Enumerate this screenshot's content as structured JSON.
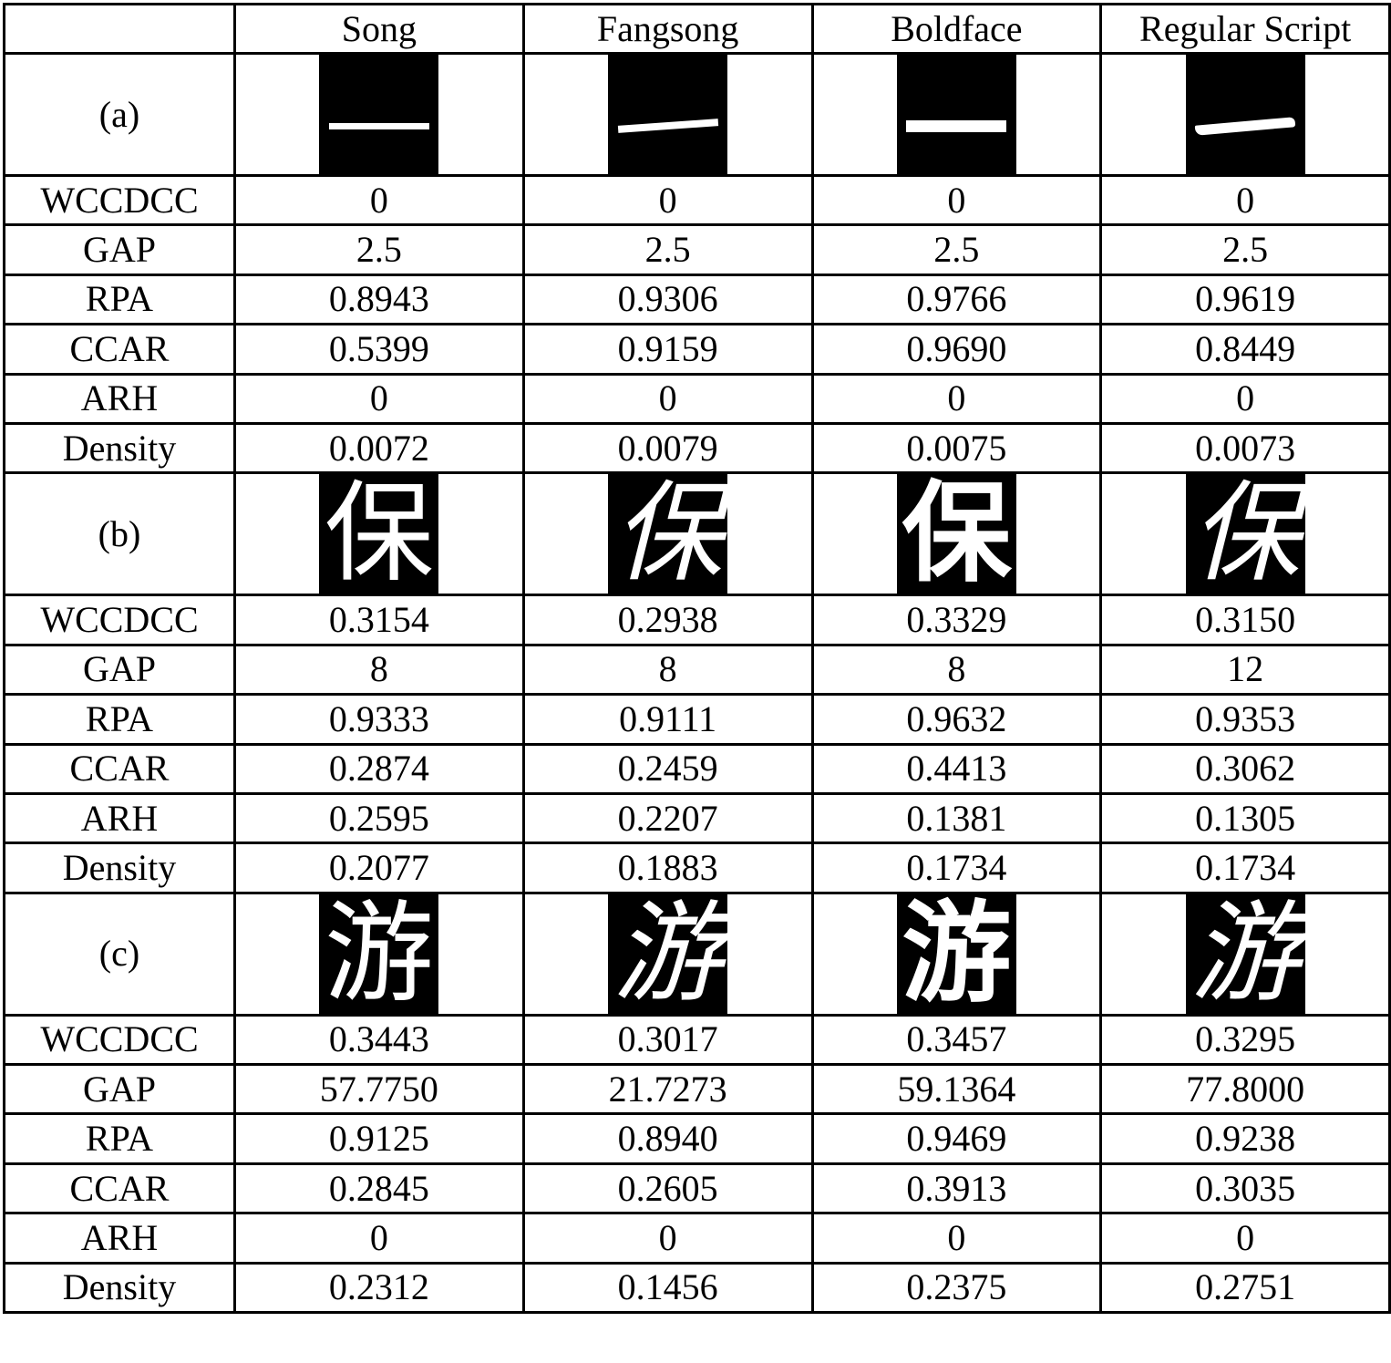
{
  "header": {
    "corner": "",
    "columns": [
      "Song",
      "Fangsong",
      "Boldface",
      "Regular Script"
    ]
  },
  "groups": [
    {
      "label": "(a)",
      "glyph": "一",
      "rows": [
        {
          "metric": "WCCDCC",
          "values": [
            "0",
            "0",
            "0",
            "0"
          ]
        },
        {
          "metric": "GAP",
          "values": [
            "2.5",
            "2.5",
            "2.5",
            "2.5"
          ]
        },
        {
          "metric": "RPA",
          "values": [
            "0.8943",
            "0.9306",
            "0.9766",
            "0.9619"
          ]
        },
        {
          "metric": "CCAR",
          "values": [
            "0.5399",
            "0.9159",
            "0.9690",
            "0.8449"
          ]
        },
        {
          "metric": "ARH",
          "values": [
            "0",
            "0",
            "0",
            "0"
          ]
        },
        {
          "metric": "Density",
          "values": [
            "0.0072",
            "0.0079",
            "0.0075",
            "0.0073"
          ]
        }
      ]
    },
    {
      "label": "(b)",
      "glyph": "保",
      "rows": [
        {
          "metric": "WCCDCC",
          "values": [
            "0.3154",
            "0.2938",
            "0.3329",
            "0.3150"
          ]
        },
        {
          "metric": "GAP",
          "values": [
            "8",
            "8",
            "8",
            "12"
          ]
        },
        {
          "metric": "RPA",
          "values": [
            "0.9333",
            "0.9111",
            "0.9632",
            "0.9353"
          ]
        },
        {
          "metric": "CCAR",
          "values": [
            "0.2874",
            "0.2459",
            "0.4413",
            "0.3062"
          ]
        },
        {
          "metric": "ARH",
          "values": [
            "0.2595",
            "0.2207",
            "0.1381",
            "0.1305"
          ]
        },
        {
          "metric": "Density",
          "values": [
            "0.2077",
            "0.1883",
            "0.1734",
            "0.1734"
          ]
        }
      ]
    },
    {
      "label": "(c)",
      "glyph": "游",
      "rows": [
        {
          "metric": "WCCDCC",
          "values": [
            "0.3443",
            "0.3017",
            "0.3457",
            "0.3295"
          ]
        },
        {
          "metric": "GAP",
          "values": [
            "57.7750",
            "21.7273",
            "59.1364",
            "77.8000"
          ]
        },
        {
          "metric": "RPA",
          "values": [
            "0.9125",
            "0.8940",
            "0.9469",
            "0.9238"
          ]
        },
        {
          "metric": "CCAR",
          "values": [
            "0.2845",
            "0.2605",
            "0.3913",
            "0.3035"
          ]
        },
        {
          "metric": "ARH",
          "values": [
            "0",
            "0",
            "0",
            "0"
          ]
        },
        {
          "metric": "Density",
          "values": [
            "0.2312",
            "0.1456",
            "0.2375",
            "0.2751"
          ]
        }
      ]
    }
  ]
}
